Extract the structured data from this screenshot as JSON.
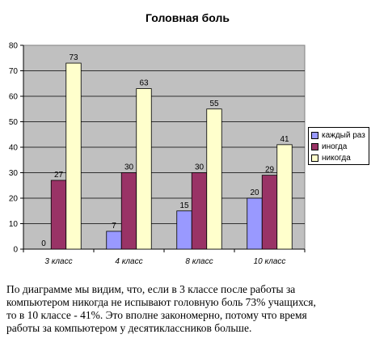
{
  "chart_data": {
    "type": "bar",
    "title": "Головная боль",
    "categories": [
      "3 класс",
      "4 класс",
      "8 класс",
      "10 класс"
    ],
    "ylim": [
      0,
      80
    ],
    "yticks": [
      0,
      10,
      20,
      30,
      40,
      50,
      60,
      70,
      80
    ],
    "grid": true,
    "legend_position": "right",
    "series": [
      {
        "name": "каждый раз",
        "color": "#9999ff",
        "values": [
          0,
          7,
          15,
          20
        ]
      },
      {
        "name": "иногда",
        "color": "#993366",
        "values": [
          27,
          30,
          30,
          29
        ]
      },
      {
        "name": "никогда",
        "color": "#ffffcc",
        "values": [
          73,
          63,
          55,
          41
        ]
      }
    ],
    "plot_background": "#c0c0c0"
  },
  "caption": {
    "lines": [
      "По диаграмме мы видим, что, если в 3 классе после работы за",
      "компьютером никогда не испывают головную боль 73% учащихся,",
      "то в 10 классе - 41%. Это вполне закономерно, потому что время",
      "работы за компьютером у десятиклассников больше."
    ]
  }
}
